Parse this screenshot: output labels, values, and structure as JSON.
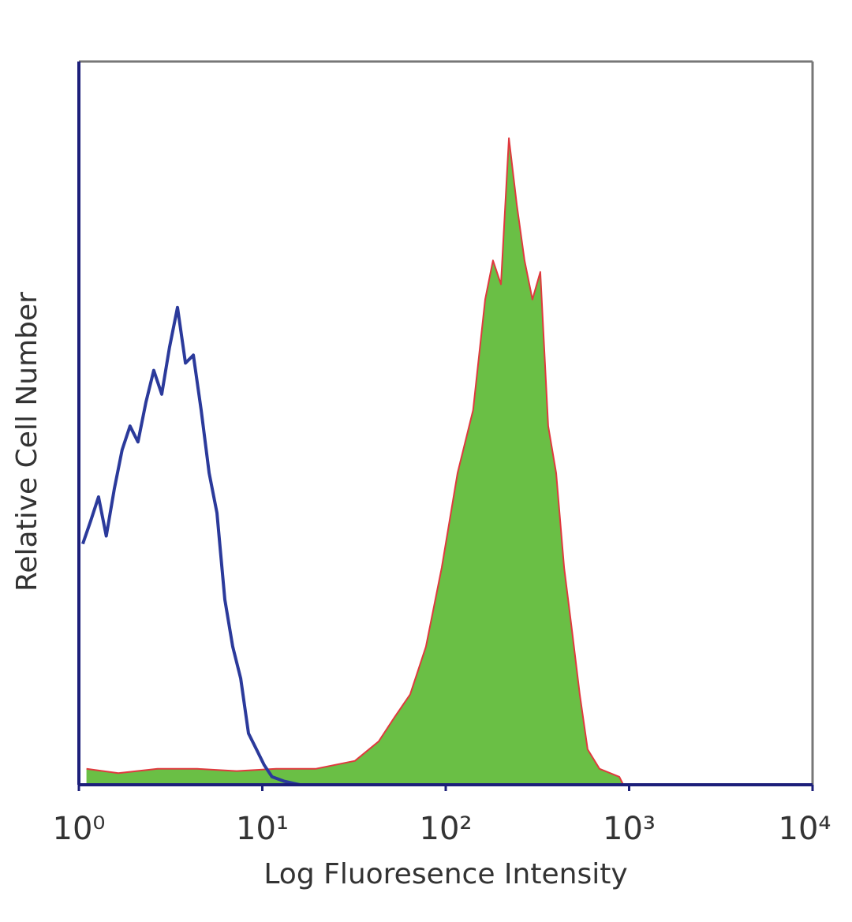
{
  "chart_data": {
    "type": "histogram-overlay",
    "x_label": "Log Fluoresence Intensity",
    "y_label": "Relative Cell Number",
    "xscale": "log",
    "xlim": [
      1,
      10000
    ],
    "ylim": [
      0,
      100
    ],
    "xticks": [
      {
        "value": 1,
        "label": "10⁰"
      },
      {
        "value": 10,
        "label": "10¹"
      },
      {
        "value": 100,
        "label": "10²"
      },
      {
        "value": 1000,
        "label": "10³"
      },
      {
        "value": 10000,
        "label": "10⁴"
      }
    ],
    "series": [
      {
        "color": "#e0393e",
        "fill_color": "#6abf45",
        "filled": true,
        "x": [
          1.1,
          1.64,
          2.69,
          4.42,
          7.25,
          11.9,
          19.5,
          32.0,
          43.1,
          52.5,
          64.0,
          78.0,
          95.1,
          116,
          141,
          164,
          181,
          200,
          221,
          244,
          269,
          297,
          328,
          362,
          400,
          442,
          488,
          538,
          594,
          690,
          884,
          929
        ],
        "values": [
          2.2,
          1.6,
          2.2,
          2.2,
          1.9,
          2.2,
          2.2,
          3.3,
          6.0,
          9.3,
          12.5,
          19.1,
          30.0,
          43.1,
          51.8,
          67.1,
          72.5,
          69.2,
          89.4,
          80.2,
          72.5,
          67.1,
          70.9,
          49.6,
          43.1,
          30.0,
          21.3,
          12.5,
          4.9,
          2.2,
          1.1,
          0
        ]
      },
      {
        "color": "#2b3a9b",
        "filled": false,
        "x": [
          1.05,
          1.16,
          1.28,
          1.41,
          1.56,
          1.72,
          1.9,
          2.1,
          2.32,
          2.56,
          2.83,
          3.12,
          3.45,
          3.81,
          4.21,
          4.64,
          5.13,
          5.66,
          6.25,
          6.9,
          7.62,
          8.41,
          9.29,
          10.25,
          11.3,
          13.1,
          16.0
        ],
        "values": [
          33.3,
          36.5,
          39.8,
          34.4,
          40.9,
          46.3,
          49.6,
          47.4,
          52.9,
          57.3,
          54.0,
          60.5,
          66.0,
          58.3,
          59.4,
          51.8,
          43.1,
          37.6,
          25.6,
          19.1,
          14.7,
          7.1,
          4.9,
          2.7,
          1.1,
          0.5,
          0
        ]
      }
    ]
  }
}
